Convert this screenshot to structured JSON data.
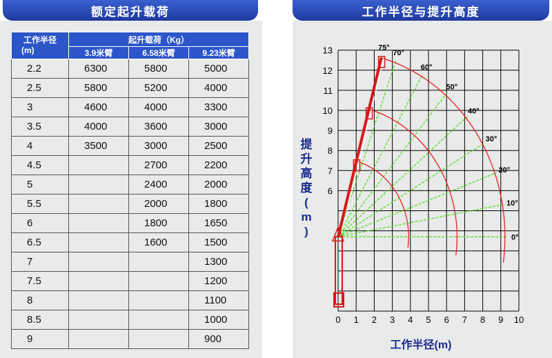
{
  "left_title": "额定起升载荷",
  "right_title": "工作半径与提升高度",
  "load_table": {
    "header_radius_line1": "工作半径",
    "header_radius_line2": "(m)",
    "header_load": "起升载荷（Kg）",
    "columns": [
      "3.9米臂",
      "6.58米臂",
      "9.23米臂"
    ],
    "rows": [
      [
        "2.2",
        "6300",
        "5800",
        "5000"
      ],
      [
        "2.5",
        "5800",
        "5200",
        "4000"
      ],
      [
        "3",
        "4600",
        "4000",
        "3300"
      ],
      [
        "3.5",
        "4000",
        "3600",
        "3000"
      ],
      [
        "4",
        "3500",
        "3000",
        "2500"
      ],
      [
        "4.5",
        "",
        "2700",
        "2200"
      ],
      [
        "5",
        "",
        "2400",
        "2000"
      ],
      [
        "5.5",
        "",
        "2000",
        "1800"
      ],
      [
        "6",
        "",
        "1800",
        "1650"
      ],
      [
        "6.5",
        "",
        "1600",
        "1500"
      ],
      [
        "7",
        "",
        "",
        "1300"
      ],
      [
        "7.5",
        "",
        "",
        "1200"
      ],
      [
        "8",
        "",
        "",
        "1100"
      ],
      [
        "8.5",
        "",
        "",
        "1000"
      ],
      [
        "9",
        "",
        "",
        "900"
      ]
    ]
  },
  "chart_data": {
    "type": "line",
    "xlabel": "工作半径(m)",
    "ylabel": "提升高度(m)",
    "xlim": [
      0,
      10
    ],
    "ylim": [
      0,
      13
    ],
    "x_ticks": [
      0,
      1,
      2,
      3,
      4,
      5,
      6,
      7,
      8,
      9,
      10
    ],
    "y_ticks": [
      6,
      7,
      8,
      9,
      10,
      11,
      12,
      13
    ],
    "grid": true,
    "pivot": [
      0,
      3.7
    ],
    "boom_lengths": [
      3.9,
      6.58,
      9.23
    ],
    "angles": [
      0,
      10,
      20,
      30,
      40,
      50,
      60,
      70,
      75
    ],
    "angle_labels": [
      "0°",
      "10°",
      "20°",
      "30°",
      "40°",
      "50°",
      "60°",
      "70°",
      "75°"
    ],
    "colors": {
      "envelope": "#e52020",
      "angle_lines": "#55dd22",
      "crane": "#d81818",
      "grid": "#000000"
    }
  }
}
